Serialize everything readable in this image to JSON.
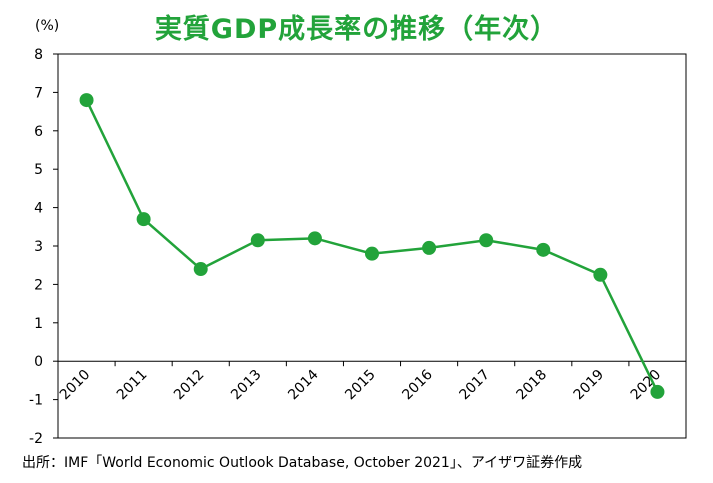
{
  "chart_data": {
    "type": "line",
    "title": "実質GDP成長率の推移（年次）",
    "unit_label": "(%)",
    "source": "出所：IMF「World Economic Outlook Database, October 2021」、アイザワ証券作成",
    "categories": [
      "2010",
      "2011",
      "2012",
      "2013",
      "2014",
      "2015",
      "2016",
      "2017",
      "2018",
      "2019",
      "2020"
    ],
    "series": [
      {
        "values": [
          6.8,
          3.7,
          2.4,
          3.15,
          3.2,
          2.8,
          2.95,
          3.15,
          2.9,
          2.25,
          -0.8
        ]
      }
    ],
    "yticks": [
      "8",
      "7",
      "6",
      "5",
      "4",
      "3",
      "2",
      "1",
      "0",
      "-1",
      "-2"
    ],
    "ylim": [
      -2,
      8
    ],
    "grid": false,
    "line_color": "#22a33a"
  }
}
